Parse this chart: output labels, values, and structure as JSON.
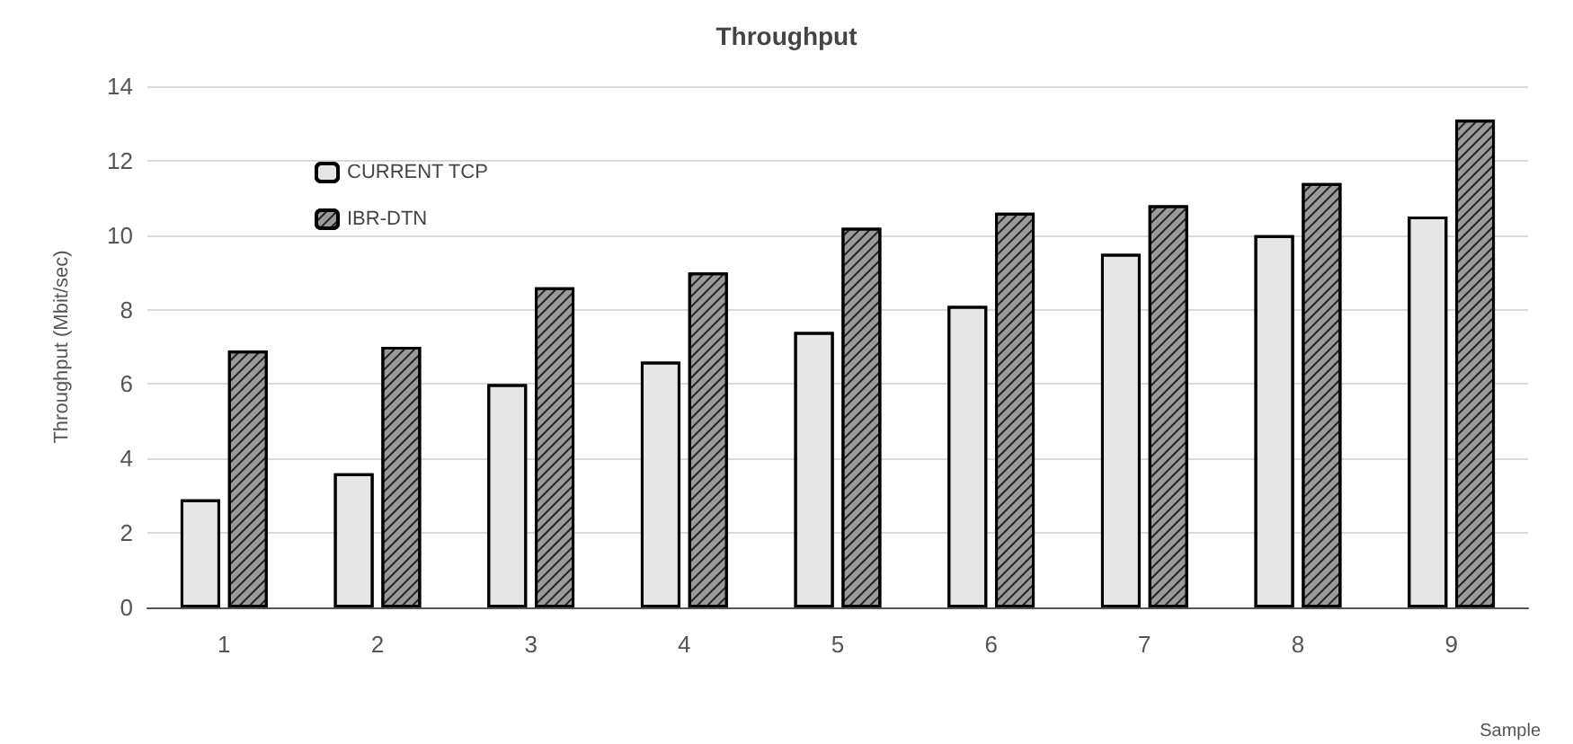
{
  "chart_data": {
    "type": "bar",
    "title": "Throughput",
    "xlabel": "Sample",
    "ylabel": "Throughput (Mbit/sec)",
    "categories": [
      "1",
      "2",
      "3",
      "4",
      "5",
      "6",
      "7",
      "8",
      "9"
    ],
    "series": [
      {
        "name": "CURRENT TCP",
        "color": "#e6e6e6",
        "values": [
          2.9,
          3.6,
          6.0,
          6.6,
          7.4,
          8.1,
          9.5,
          10.0,
          10.5
        ]
      },
      {
        "name": "IBR-DTN",
        "color": "#9a9a9a",
        "values": [
          6.9,
          7.0,
          8.6,
          9.0,
          10.2,
          10.6,
          10.8,
          11.4,
          13.1
        ]
      }
    ],
    "ylim": [
      0,
      14
    ],
    "yticks": [
      0,
      2,
      4,
      6,
      8,
      10,
      12,
      14
    ],
    "grid": "y",
    "legend": "top left"
  }
}
